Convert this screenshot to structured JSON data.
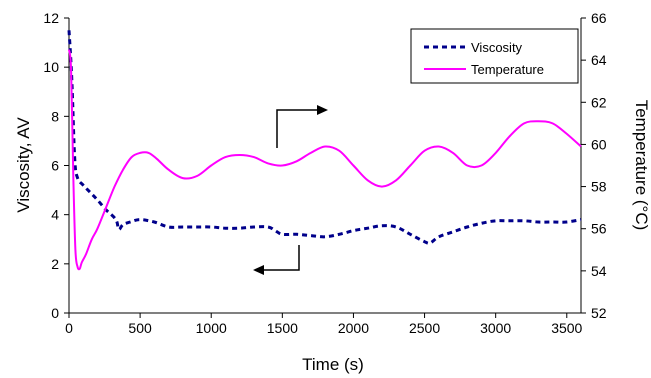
{
  "chart_data": {
    "type": "line",
    "xlabel": "Time (s)",
    "ylabel": "Viscosity, AV",
    "y2label": "Temperature (°C)",
    "xlim": [
      0,
      3600
    ],
    "ylim": [
      0,
      12
    ],
    "y2lim": [
      52,
      66
    ],
    "xticks": [
      0,
      500,
      1000,
      1500,
      2000,
      2500,
      3000,
      3500
    ],
    "yticks": [
      0,
      2,
      4,
      6,
      8,
      10,
      12
    ],
    "y2ticks": [
      52,
      54,
      56,
      58,
      60,
      62,
      64,
      66
    ],
    "grid": false,
    "legend": "top-right",
    "series": [
      {
        "name": "Viscosity",
        "axis": "left",
        "color": "#00008b",
        "style": "dashed",
        "x": [
          0,
          20,
          40,
          60,
          100,
          150,
          200,
          260,
          330,
          350,
          380,
          430,
          500,
          600,
          700,
          800,
          900,
          1000,
          1100,
          1200,
          1300,
          1400,
          1450,
          1500,
          1600,
          1700,
          1800,
          1900,
          2000,
          2100,
          2200,
          2300,
          2400,
          2500,
          2540,
          2600,
          2700,
          2800,
          2900,
          3000,
          3100,
          3200,
          3300,
          3400,
          3500,
          3600
        ],
        "y": [
          11.5,
          9.5,
          6.3,
          5.5,
          5.2,
          4.9,
          4.6,
          4.2,
          3.8,
          3.4,
          3.6,
          3.7,
          3.8,
          3.7,
          3.5,
          3.5,
          3.5,
          3.5,
          3.45,
          3.45,
          3.5,
          3.5,
          3.35,
          3.2,
          3.2,
          3.15,
          3.1,
          3.2,
          3.35,
          3.45,
          3.55,
          3.5,
          3.2,
          2.9,
          2.85,
          3.1,
          3.3,
          3.5,
          3.65,
          3.75,
          3.75,
          3.75,
          3.7,
          3.7,
          3.7,
          3.8
        ]
      },
      {
        "name": "Temperature",
        "axis": "right",
        "color": "#ff00ff",
        "style": "solid",
        "x": [
          0,
          15,
          30,
          45,
          60,
          75,
          90,
          120,
          160,
          200,
          260,
          320,
          380,
          440,
          500,
          560,
          620,
          700,
          800,
          900,
          1000,
          1100,
          1200,
          1300,
          1400,
          1500,
          1600,
          1700,
          1800,
          1900,
          2000,
          2100,
          2200,
          2300,
          2400,
          2500,
          2600,
          2700,
          2800,
          2900,
          3000,
          3100,
          3200,
          3300,
          3400,
          3500,
          3600
        ],
        "y": [
          64.5,
          63.5,
          58.5,
          55.0,
          54.2,
          54.1,
          54.4,
          54.8,
          55.5,
          56.0,
          57.0,
          58.0,
          58.8,
          59.4,
          59.6,
          59.6,
          59.3,
          58.8,
          58.4,
          58.5,
          59.0,
          59.4,
          59.5,
          59.4,
          59.1,
          59.0,
          59.2,
          59.6,
          59.9,
          59.7,
          59.0,
          58.3,
          58.0,
          58.3,
          59.0,
          59.7,
          59.9,
          59.6,
          59.0,
          59.0,
          59.6,
          60.4,
          61.0,
          61.1,
          61.0,
          60.5,
          59.9
        ]
      }
    ]
  }
}
